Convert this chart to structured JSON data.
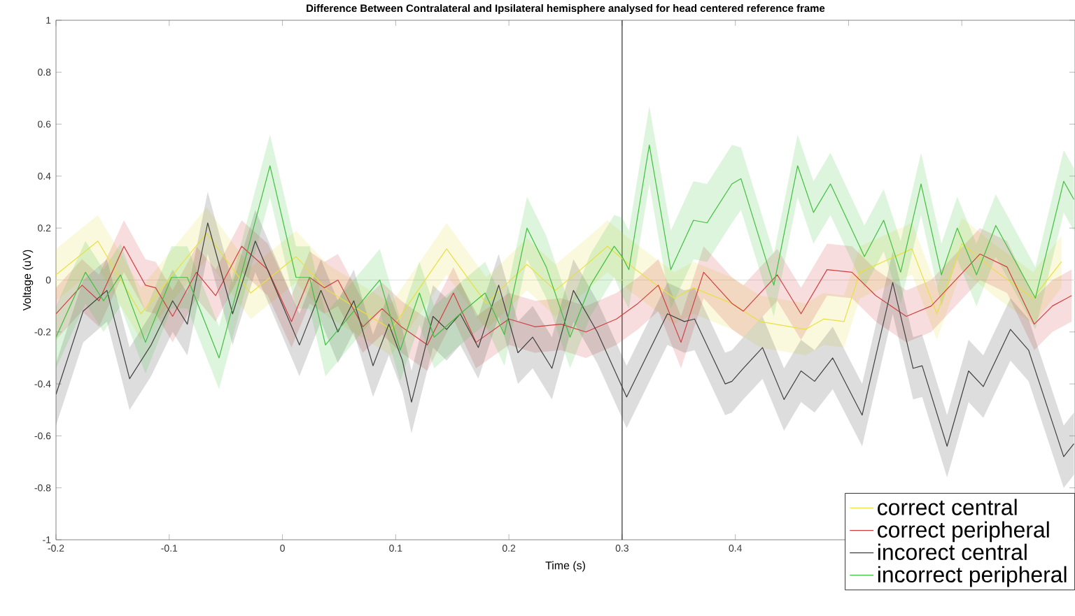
{
  "chart_data": {
    "type": "line",
    "title": "Difference Between Contralateral and Ipsilateral hemisphere analysed for head centered reference frame",
    "xlabel": "Time (s)",
    "ylabel": "Voltage (uV)",
    "xlim": [
      -0.2,
      0.7
    ],
    "ylim": [
      -1,
      1
    ],
    "xticks": [
      -0.2,
      -0.1,
      0,
      0.1,
      0.2,
      0.3,
      0.4,
      {
        "value": 0.5,
        "label": null
      },
      {
        "value": 0.6,
        "label": null
      }
    ],
    "yticks": [
      -1,
      -0.8,
      -0.6,
      -0.4,
      -0.2,
      0,
      0.2,
      0.4,
      0.6,
      0.8,
      1
    ],
    "legend": "bottom right",
    "marker": "none",
    "line_style": "solid",
    "grid": false,
    "ref_lines": [
      {
        "axis": "x",
        "value": 0.3,
        "color": "#000000"
      },
      {
        "axis": "y",
        "value": 0,
        "color": "#e0e0e0"
      }
    ],
    "series": [
      {
        "name": "correct central",
        "color": "#e8e040",
        "x": [
          -0.2,
          -0.163,
          -0.125,
          -0.067,
          -0.028,
          0.012,
          0.04,
          0.096,
          0.145,
          0.18,
          0.216,
          0.241,
          0.266,
          0.287,
          0.309,
          0.346,
          0.363,
          0.397,
          0.422,
          0.462,
          0.478,
          0.496,
          0.51,
          0.556,
          0.578,
          0.6,
          0.628,
          0.663,
          0.688
        ],
        "values": [
          0.02,
          0.15,
          -0.13,
          0.18,
          -0.05,
          0.09,
          -0.04,
          -0.19,
          0.12,
          -0.09,
          0.06,
          -0.04,
          0.05,
          0.13,
          0.05,
          -0.07,
          -0.03,
          -0.09,
          -0.16,
          -0.19,
          -0.15,
          -0.16,
          0.03,
          0.12,
          -0.13,
          0.14,
          0.04,
          -0.07,
          0.07
        ],
        "lower": [
          -0.08,
          0.05,
          -0.23,
          0.08,
          -0.15,
          -0.01,
          -0.14,
          -0.29,
          0.02,
          -0.19,
          -0.04,
          -0.14,
          -0.05,
          0.03,
          -0.05,
          -0.17,
          -0.13,
          -0.19,
          -0.26,
          -0.29,
          -0.25,
          -0.26,
          -0.07,
          0.02,
          -0.23,
          0.04,
          -0.06,
          -0.17,
          -0.03
        ],
        "upper": [
          0.12,
          0.25,
          -0.03,
          0.28,
          0.05,
          0.19,
          0.06,
          -0.09,
          0.22,
          0.01,
          0.16,
          0.06,
          0.15,
          0.23,
          0.15,
          0.03,
          0.07,
          0.01,
          -0.06,
          -0.09,
          -0.05,
          -0.06,
          0.13,
          0.22,
          -0.03,
          0.24,
          0.14,
          0.03,
          0.17
        ]
      },
      {
        "name": "correct peripheral",
        "color": "#d04040",
        "x": [
          -0.2,
          -0.177,
          -0.162,
          -0.14,
          -0.121,
          -0.112,
          -0.097,
          -0.076,
          -0.059,
          -0.036,
          -0.013,
          0.008,
          0.024,
          0.037,
          0.049,
          0.071,
          0.088,
          0.105,
          0.128,
          0.151,
          0.171,
          0.2,
          0.223,
          0.246,
          0.268,
          0.295,
          0.314,
          0.332,
          0.352,
          0.372,
          0.397,
          0.407,
          0.437,
          0.458,
          0.481,
          0.503,
          0.524,
          0.551,
          0.573,
          0.616,
          0.64,
          0.664,
          0.68,
          0.697
        ],
        "values": [
          -0.13,
          -0.02,
          -0.08,
          0.13,
          -0.02,
          -0.03,
          -0.14,
          0.03,
          -0.06,
          0.13,
          0.04,
          -0.16,
          0.01,
          -0.03,
          0.0,
          -0.18,
          -0.11,
          -0.18,
          -0.25,
          -0.05,
          -0.24,
          -0.15,
          -0.18,
          -0.17,
          -0.2,
          -0.15,
          -0.09,
          -0.02,
          -0.24,
          0.03,
          -0.09,
          -0.12,
          0.02,
          -0.13,
          0.04,
          0.03,
          -0.06,
          -0.14,
          -0.1,
          0.1,
          0.05,
          -0.17,
          -0.1,
          -0.06
        ],
        "lower": [
          -0.23,
          -0.12,
          -0.18,
          0.03,
          -0.12,
          -0.13,
          -0.24,
          -0.07,
          -0.16,
          0.03,
          -0.06,
          -0.26,
          -0.09,
          -0.13,
          -0.1,
          -0.28,
          -0.21,
          -0.28,
          -0.35,
          -0.15,
          -0.34,
          -0.25,
          -0.28,
          -0.27,
          -0.3,
          -0.25,
          -0.19,
          -0.12,
          -0.34,
          -0.07,
          -0.19,
          -0.22,
          -0.08,
          -0.23,
          -0.06,
          -0.07,
          -0.16,
          -0.24,
          -0.2,
          0.0,
          -0.05,
          -0.27,
          -0.2,
          -0.16
        ],
        "upper": [
          -0.03,
          0.08,
          0.02,
          0.23,
          0.08,
          0.07,
          -0.04,
          0.13,
          0.04,
          0.23,
          0.14,
          -0.06,
          0.11,
          0.07,
          0.1,
          -0.08,
          -0.01,
          -0.08,
          -0.15,
          0.05,
          -0.14,
          -0.05,
          -0.08,
          -0.07,
          -0.1,
          -0.05,
          0.01,
          0.08,
          -0.14,
          0.13,
          0.01,
          -0.02,
          0.12,
          -0.03,
          0.14,
          0.13,
          0.04,
          -0.04,
          0.0,
          0.2,
          0.15,
          -0.07,
          0.0,
          0.04
        ]
      },
      {
        "name": "incorect central",
        "color": "#404040",
        "x": [
          -0.2,
          -0.176,
          -0.155,
          -0.135,
          -0.116,
          -0.097,
          -0.084,
          -0.066,
          -0.044,
          -0.024,
          0.015,
          0.034,
          0.049,
          0.063,
          0.08,
          0.094,
          0.106,
          0.114,
          0.133,
          0.145,
          0.157,
          0.173,
          0.191,
          0.208,
          0.221,
          0.238,
          0.257,
          0.278,
          0.304,
          0.34,
          0.355,
          0.364,
          0.391,
          0.397,
          0.407,
          0.424,
          0.443,
          0.458,
          0.47,
          0.486,
          0.512,
          0.539,
          0.557,
          0.565,
          0.587,
          0.606,
          0.619,
          0.643,
          0.659,
          0.69,
          0.699
        ],
        "values": [
          -0.44,
          -0.12,
          -0.04,
          -0.38,
          -0.25,
          -0.08,
          -0.17,
          0.22,
          -0.13,
          0.15,
          -0.25,
          -0.04,
          -0.2,
          -0.08,
          -0.33,
          -0.17,
          -0.31,
          -0.47,
          -0.14,
          -0.19,
          -0.13,
          -0.26,
          -0.02,
          -0.28,
          -0.22,
          -0.34,
          -0.04,
          -0.2,
          -0.45,
          -0.13,
          -0.16,
          -0.15,
          -0.4,
          -0.39,
          -0.34,
          -0.26,
          -0.46,
          -0.35,
          -0.39,
          -0.3,
          -0.52,
          -0.01,
          -0.34,
          -0.33,
          -0.64,
          -0.35,
          -0.41,
          -0.19,
          -0.27,
          -0.68,
          -0.63
        ],
        "lower": [
          -0.56,
          -0.24,
          -0.16,
          -0.5,
          -0.37,
          -0.2,
          -0.29,
          0.1,
          -0.25,
          0.03,
          -0.37,
          -0.16,
          -0.32,
          -0.2,
          -0.45,
          -0.29,
          -0.43,
          -0.59,
          -0.26,
          -0.31,
          -0.25,
          -0.38,
          -0.14,
          -0.4,
          -0.34,
          -0.46,
          -0.16,
          -0.32,
          -0.57,
          -0.25,
          -0.28,
          -0.27,
          -0.52,
          -0.51,
          -0.46,
          -0.38,
          -0.58,
          -0.47,
          -0.51,
          -0.42,
          -0.64,
          -0.13,
          -0.46,
          -0.45,
          -0.76,
          -0.47,
          -0.53,
          -0.31,
          -0.39,
          -0.8,
          -0.75
        ],
        "upper": [
          -0.32,
          0.0,
          0.08,
          -0.26,
          -0.13,
          0.04,
          -0.05,
          0.34,
          -0.01,
          0.27,
          -0.13,
          0.08,
          -0.08,
          0.04,
          -0.21,
          -0.05,
          -0.19,
          -0.35,
          -0.02,
          -0.07,
          -0.01,
          -0.14,
          0.1,
          -0.16,
          -0.1,
          -0.22,
          0.08,
          -0.08,
          -0.33,
          -0.01,
          -0.04,
          -0.03,
          -0.28,
          -0.27,
          -0.22,
          -0.14,
          -0.34,
          -0.23,
          -0.27,
          -0.18,
          -0.4,
          0.11,
          -0.22,
          -0.21,
          -0.52,
          -0.23,
          -0.29,
          -0.07,
          -0.15,
          -0.56,
          -0.51
        ]
      },
      {
        "name": "incorrect peripheral",
        "color": "#40c040",
        "x": [
          -0.2,
          -0.174,
          -0.158,
          -0.143,
          -0.121,
          -0.098,
          -0.084,
          -0.056,
          -0.011,
          0.012,
          0.024,
          0.038,
          0.086,
          0.104,
          0.121,
          0.134,
          0.157,
          0.179,
          0.196,
          0.216,
          0.233,
          0.254,
          0.272,
          0.293,
          0.3,
          0.306,
          0.324,
          0.343,
          0.363,
          0.375,
          0.397,
          0.405,
          0.434,
          0.455,
          0.469,
          0.484,
          0.514,
          0.531,
          0.546,
          0.564,
          0.582,
          0.596,
          0.613,
          0.63,
          0.665,
          0.69,
          0.699
        ],
        "values": [
          -0.22,
          0.03,
          -0.08,
          0.02,
          -0.24,
          0.01,
          0.01,
          -0.3,
          0.44,
          0.01,
          0.01,
          -0.25,
          0.0,
          -0.27,
          -0.05,
          -0.22,
          -0.13,
          -0.05,
          -0.21,
          0.2,
          0.05,
          -0.22,
          -0.02,
          0.13,
          0.09,
          0.04,
          0.52,
          0.04,
          0.23,
          0.22,
          0.37,
          0.39,
          -0.02,
          0.44,
          0.26,
          0.37,
          0.09,
          0.23,
          0.03,
          0.37,
          0.02,
          0.2,
          0.02,
          0.21,
          -0.07,
          0.38,
          0.31
        ],
        "lower": [
          -0.34,
          -0.09,
          -0.2,
          -0.1,
          -0.36,
          -0.11,
          -0.11,
          -0.42,
          0.32,
          -0.11,
          -0.11,
          -0.37,
          -0.12,
          -0.39,
          -0.17,
          -0.34,
          -0.25,
          -0.17,
          -0.33,
          0.08,
          -0.07,
          -0.34,
          -0.14,
          0.01,
          -0.06,
          -0.11,
          0.37,
          -0.11,
          0.08,
          0.07,
          0.22,
          0.27,
          -0.14,
          0.32,
          0.14,
          0.25,
          -0.03,
          0.11,
          -0.09,
          0.25,
          -0.1,
          0.08,
          -0.1,
          0.09,
          -0.19,
          0.26,
          0.19
        ],
        "upper": [
          -0.1,
          0.15,
          0.04,
          0.14,
          -0.12,
          0.13,
          0.13,
          -0.18,
          0.56,
          0.13,
          0.13,
          -0.13,
          0.12,
          -0.15,
          0.07,
          -0.1,
          -0.01,
          0.07,
          -0.09,
          0.32,
          0.17,
          -0.1,
          0.1,
          0.25,
          0.24,
          0.19,
          0.67,
          0.19,
          0.38,
          0.37,
          0.52,
          0.51,
          0.1,
          0.56,
          0.38,
          0.49,
          0.21,
          0.35,
          0.15,
          0.49,
          0.14,
          0.32,
          0.14,
          0.33,
          0.05,
          0.5,
          0.43
        ]
      }
    ]
  }
}
